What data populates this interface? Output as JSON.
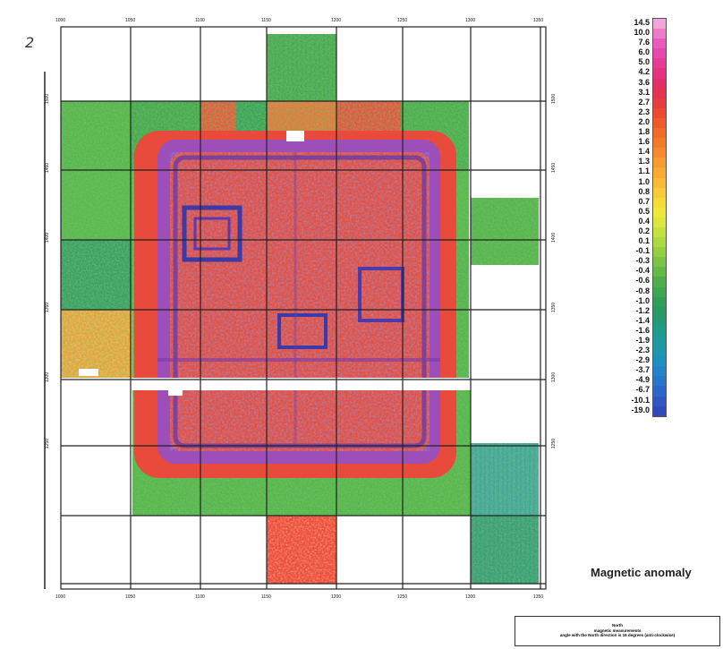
{
  "figure_number": "2",
  "legend": {
    "title": "Magnetic anomaly",
    "entries": [
      {
        "label": "14.5",
        "color": "#f0a6d8"
      },
      {
        "label": "10.0",
        "color": "#ee7ccb"
      },
      {
        "label": "7.6",
        "color": "#ea5bbd"
      },
      {
        "label": "6.0",
        "color": "#e649ac"
      },
      {
        "label": "5.0",
        "color": "#e53c97"
      },
      {
        "label": "4.2",
        "color": "#e5337f"
      },
      {
        "label": "3.6",
        "color": "#e52f68"
      },
      {
        "label": "3.1",
        "color": "#e63352"
      },
      {
        "label": "2.7",
        "color": "#e83d40"
      },
      {
        "label": "2.3",
        "color": "#ec4a33"
      },
      {
        "label": "2.0",
        "color": "#ef5a2d"
      },
      {
        "label": "1.8",
        "color": "#f16b2b"
      },
      {
        "label": "1.6",
        "color": "#f37a2b"
      },
      {
        "label": "1.4",
        "color": "#f58a2d"
      },
      {
        "label": "1.3",
        "color": "#f79a30"
      },
      {
        "label": "1.1",
        "color": "#f8aa33"
      },
      {
        "label": "1.0",
        "color": "#f9bb36"
      },
      {
        "label": "0.8",
        "color": "#f9cb38"
      },
      {
        "label": "0.7",
        "color": "#f6da3a"
      },
      {
        "label": "0.5",
        "color": "#eee83c"
      },
      {
        "label": "0.4",
        "color": "#dbe93e"
      },
      {
        "label": "0.2",
        "color": "#c4e23f"
      },
      {
        "label": "0.1",
        "color": "#acd940"
      },
      {
        "label": "-0.1",
        "color": "#93cf41"
      },
      {
        "label": "-0.3",
        "color": "#7cc443"
      },
      {
        "label": "-0.4",
        "color": "#66b946"
      },
      {
        "label": "-0.6",
        "color": "#4fae4a"
      },
      {
        "label": "-0.8",
        "color": "#3ea650"
      },
      {
        "label": "-1.0",
        "color": "#319e58"
      },
      {
        "label": "-1.2",
        "color": "#289a66"
      },
      {
        "label": "-1.4",
        "color": "#229a78"
      },
      {
        "label": "-1.6",
        "color": "#1f9b8b"
      },
      {
        "label": "-1.9",
        "color": "#1d9a9d"
      },
      {
        "label": "-2.3",
        "color": "#1d96ae"
      },
      {
        "label": "-2.9",
        "color": "#1f8fbd"
      },
      {
        "label": "-3.7",
        "color": "#2384c6"
      },
      {
        "label": "-4.9",
        "color": "#2876c9"
      },
      {
        "label": "-6.7",
        "color": "#2c66c7"
      },
      {
        "label": "-10.1",
        "color": "#2f57c2"
      },
      {
        "label": "-19.0",
        "color": "#3149b8"
      }
    ]
  },
  "note": {
    "line1": "North",
    "line2": "magnetic measurements",
    "line3": "angle with the North direction is 16 degrees (anti-clockwise)"
  },
  "map": {
    "top_ticks": [
      "1000",
      "1050",
      "1100",
      "1150",
      "1200",
      "1250",
      "1300",
      "1350"
    ],
    "bottom_ticks": [
      "1000",
      "1050",
      "1100",
      "1150",
      "1200",
      "1250",
      "1300",
      "1350"
    ],
    "left_ticks": [
      "1500",
      "1450",
      "1400",
      "1350",
      "1300",
      "1250"
    ],
    "right_ticks": [
      "1500",
      "1450",
      "1400",
      "1350",
      "1300",
      "1250"
    ]
  }
}
